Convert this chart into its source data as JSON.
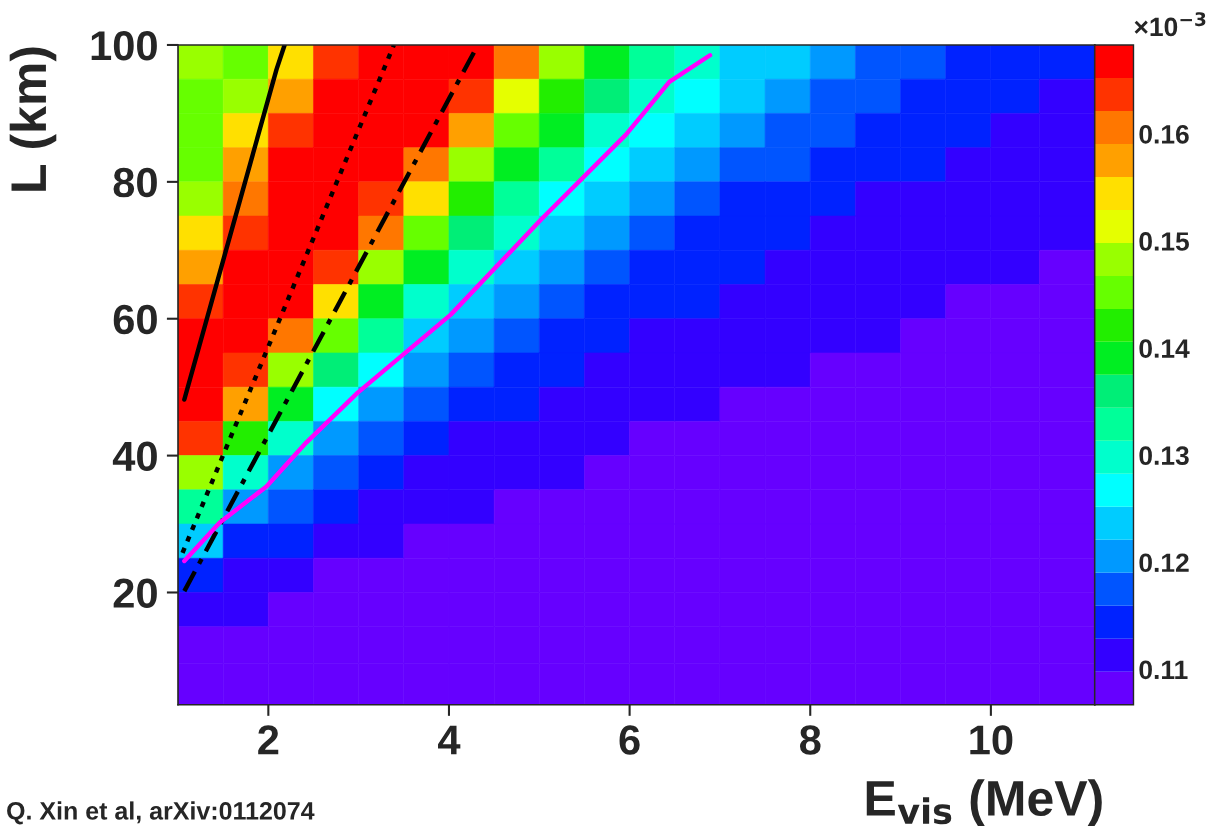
{
  "chart_data": {
    "type": "heatmap",
    "xlabel": "E$_{vis}$ (MeV)",
    "ylabel": "L (km)",
    "clabel": "×10$^{−3}$",
    "annotations": [
      "Q. Xin et al, arXiv:0112074"
    ],
    "x": [
      1.25,
      1.75,
      2.25,
      2.75,
      3.25,
      3.75,
      4.25,
      4.75,
      5.25,
      5.75,
      6.25,
      6.75,
      7.25,
      7.75,
      8.25,
      8.75,
      9.25,
      9.75,
      10.25,
      10.825
    ],
    "y": [
      97.5,
      92.5,
      87.5,
      82.5,
      77.5,
      72.5,
      67.5,
      62.5,
      57.5,
      52.5,
      47.5,
      42.5,
      37.5,
      32.5,
      27.5,
      22.5,
      17.5,
      12.5,
      6.8
    ],
    "cells": [
      [
        0.148,
        0.145,
        0.154,
        0.164,
        0.167,
        0.167,
        0.167,
        0.161,
        0.148,
        0.139,
        0.133,
        0.13,
        0.124,
        0.124,
        0.121,
        0.117,
        0.117,
        0.114,
        0.114,
        0.114
      ],
      [
        0.145,
        0.148,
        0.158,
        0.167,
        0.167,
        0.167,
        0.164,
        0.151,
        0.142,
        0.136,
        0.13,
        0.127,
        0.124,
        0.121,
        0.117,
        0.117,
        0.114,
        0.114,
        0.114,
        0.111
      ],
      [
        0.145,
        0.154,
        0.164,
        0.167,
        0.167,
        0.167,
        0.158,
        0.145,
        0.139,
        0.13,
        0.127,
        0.124,
        0.121,
        0.117,
        0.117,
        0.114,
        0.114,
        0.114,
        0.111,
        0.111
      ],
      [
        0.145,
        0.158,
        0.167,
        0.167,
        0.167,
        0.161,
        0.148,
        0.139,
        0.133,
        0.127,
        0.124,
        0.121,
        0.117,
        0.117,
        0.114,
        0.114,
        0.114,
        0.111,
        0.111,
        0.111
      ],
      [
        0.148,
        0.161,
        0.167,
        0.167,
        0.164,
        0.154,
        0.142,
        0.133,
        0.127,
        0.124,
        0.121,
        0.117,
        0.114,
        0.114,
        0.114,
        0.111,
        0.111,
        0.111,
        0.111,
        0.111
      ],
      [
        0.154,
        0.164,
        0.167,
        0.167,
        0.161,
        0.145,
        0.136,
        0.13,
        0.124,
        0.121,
        0.117,
        0.114,
        0.114,
        0.114,
        0.111,
        0.111,
        0.111,
        0.111,
        0.111,
        0.111
      ],
      [
        0.158,
        0.167,
        0.167,
        0.164,
        0.148,
        0.139,
        0.13,
        0.124,
        0.121,
        0.117,
        0.114,
        0.114,
        0.114,
        0.111,
        0.111,
        0.111,
        0.111,
        0.111,
        0.111,
        0.108
      ],
      [
        0.164,
        0.167,
        0.167,
        0.154,
        0.139,
        0.13,
        0.124,
        0.121,
        0.117,
        0.114,
        0.114,
        0.114,
        0.111,
        0.111,
        0.111,
        0.111,
        0.111,
        0.108,
        0.108,
        0.108
      ],
      [
        0.167,
        0.167,
        0.161,
        0.145,
        0.133,
        0.124,
        0.121,
        0.117,
        0.114,
        0.114,
        0.111,
        0.111,
        0.111,
        0.111,
        0.111,
        0.111,
        0.108,
        0.108,
        0.108,
        0.108
      ],
      [
        0.167,
        0.164,
        0.148,
        0.136,
        0.127,
        0.121,
        0.117,
        0.114,
        0.114,
        0.111,
        0.111,
        0.111,
        0.111,
        0.111,
        0.108,
        0.108,
        0.108,
        0.108,
        0.108,
        0.108
      ],
      [
        0.167,
        0.158,
        0.139,
        0.127,
        0.121,
        0.117,
        0.114,
        0.114,
        0.111,
        0.111,
        0.111,
        0.111,
        0.108,
        0.108,
        0.108,
        0.108,
        0.108,
        0.108,
        0.108,
        0.108
      ],
      [
        0.164,
        0.142,
        0.13,
        0.121,
        0.117,
        0.114,
        0.111,
        0.111,
        0.111,
        0.111,
        0.108,
        0.108,
        0.108,
        0.108,
        0.108,
        0.108,
        0.108,
        0.108,
        0.108,
        0.108
      ],
      [
        0.148,
        0.13,
        0.121,
        0.117,
        0.114,
        0.111,
        0.111,
        0.111,
        0.111,
        0.108,
        0.108,
        0.108,
        0.108,
        0.108,
        0.108,
        0.108,
        0.108,
        0.108,
        0.108,
        0.108
      ],
      [
        0.133,
        0.121,
        0.117,
        0.114,
        0.111,
        0.111,
        0.111,
        0.108,
        0.108,
        0.108,
        0.108,
        0.108,
        0.108,
        0.108,
        0.108,
        0.108,
        0.108,
        0.108,
        0.108,
        0.108
      ],
      [
        0.124,
        0.114,
        0.114,
        0.111,
        0.111,
        0.108,
        0.108,
        0.108,
        0.108,
        0.108,
        0.108,
        0.108,
        0.108,
        0.108,
        0.108,
        0.108,
        0.108,
        0.108,
        0.108,
        0.108
      ],
      [
        0.114,
        0.111,
        0.111,
        0.108,
        0.108,
        0.108,
        0.108,
        0.108,
        0.108,
        0.108,
        0.108,
        0.108,
        0.108,
        0.108,
        0.108,
        0.108,
        0.108,
        0.108,
        0.108,
        0.108
      ],
      [
        0.111,
        0.111,
        0.108,
        0.108,
        0.108,
        0.108,
        0.108,
        0.108,
        0.108,
        0.108,
        0.108,
        0.108,
        0.108,
        0.108,
        0.108,
        0.108,
        0.108,
        0.108,
        0.108,
        0.108
      ],
      [
        0.108,
        0.108,
        0.108,
        0.108,
        0.108,
        0.108,
        0.108,
        0.108,
        0.108,
        0.108,
        0.108,
        0.108,
        0.108,
        0.108,
        0.108,
        0.108,
        0.108,
        0.108,
        0.108,
        0.108
      ],
      [
        0.108,
        0.108,
        0.108,
        0.108,
        0.108,
        0.108,
        0.108,
        0.108,
        0.108,
        0.108,
        0.108,
        0.108,
        0.108,
        0.108,
        0.108,
        0.108,
        0.108,
        0.108,
        0.108,
        0.108
      ]
    ],
    "colors": [
      "#6600ff",
      "#3300ff",
      "#0022ff",
      "#0055ff",
      "#0099ff",
      "#00ccff",
      "#00ffff",
      "#00ffcc",
      "#00ff99",
      "#00ee77",
      "#00ee22",
      "#22ee00",
      "#66ff00",
      "#99ff00",
      "#e5ff00",
      "#ffe000",
      "#ffa000",
      "#ff7700",
      "#ff3300",
      "#ff0000"
    ],
    "clim": [
      0.1067,
      0.1683
    ],
    "cticks": [
      0.11,
      0.12,
      0.13,
      0.14,
      0.15,
      0.16
    ],
    "xlim": [
      1.0,
      11.15
    ],
    "ylim": [
      3.6,
      100
    ],
    "xticks": [
      2,
      4,
      6,
      8,
      10
    ],
    "yticks": [
      20,
      40,
      60,
      80,
      100
    ],
    "series": [
      {
        "type": "line",
        "color": "#000000",
        "line_style": "solid",
        "x": [
          1.07,
          2.09,
          2.18
        ],
        "values": [
          48.2,
          96.4,
          100
        ]
      },
      {
        "type": "line",
        "color": "#000000",
        "line_style": "dotted",
        "x": [
          1.05,
          3.39
        ],
        "values": [
          25.8,
          100
        ]
      },
      {
        "type": "line",
        "color": "#000000",
        "line_style": "dashdot",
        "x": [
          1.07,
          4.32
        ],
        "values": [
          20.2,
          100
        ]
      },
      {
        "type": "line",
        "color": "#ff00ff",
        "line_style": "solid",
        "x": [
          1.07,
          1.46,
          1.98,
          2.42,
          2.99,
          4.02,
          5.02,
          5.96,
          6.44,
          6.89
        ],
        "values": [
          24.6,
          30.2,
          35.5,
          41.9,
          49.2,
          60.6,
          74.5,
          86.9,
          94.6,
          98.5
        ]
      }
    ]
  }
}
